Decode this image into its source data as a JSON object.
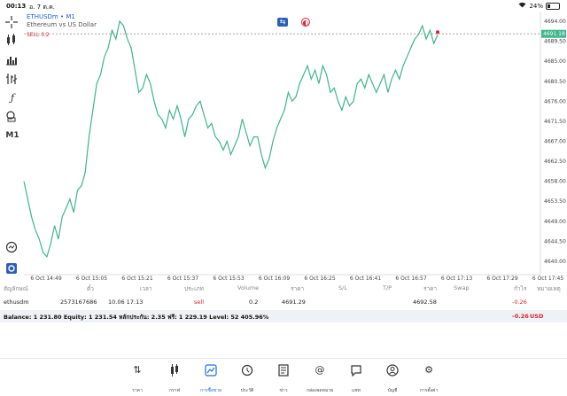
{
  "statusbar": {
    "time": "00:13",
    "date": "อ. 7 ต.ค.",
    "battery": "24%"
  },
  "chart": {
    "symbol": "ETHUSDm • M1",
    "description": "Ethereum vs US Dollar",
    "sell_label": "SELL 0.2",
    "current_price": "4691.18",
    "price_labels": [
      "4694.00",
      "4689.50",
      "4685.00",
      "4680.50",
      "4676.00",
      "4671.50",
      "4667.00",
      "4662.50",
      "4658.00",
      "4653.50",
      "4649.00",
      "4644.50",
      "4640.00"
    ],
    "time_labels": [
      "6 Oct 14:49",
      "6 Oct 15:05",
      "6 Oct 15:21",
      "6 Oct 15:37",
      "6 Oct 15:53",
      "6 Oct 16:09",
      "6 Oct 16:25",
      "6 Oct 16:41",
      "6 Oct 16:57",
      "6 Oct 17:13",
      "6 Oct 17:29",
      "6 Oct 17:45"
    ],
    "line_color": "#3fb58a",
    "sell_color": "#d23",
    "toolbar_icons": [
      "crosshair-icon",
      "candles-icon",
      "bars-icon",
      "volume-icon",
      "function-icon",
      "objects-icon",
      "timeframe-m1",
      "search-icon",
      "share-icon"
    ],
    "timeframe": "M1",
    "series": [
      4658,
      4654,
      4650,
      4647,
      4645,
      4642,
      4641,
      4644,
      4648,
      4645,
      4650,
      4652,
      4654,
      4651,
      4656,
      4657,
      4660,
      4668,
      4674,
      4680,
      4682,
      4686,
      4688,
      4692,
      4690,
      4694,
      4693,
      4690,
      4688,
      4683,
      4678,
      4679,
      4682,
      4680,
      4676,
      4673,
      4672,
      4670,
      4674,
      4672,
      4675,
      4672,
      4668,
      4672,
      4673,
      4675,
      4676,
      4673,
      4670,
      4671,
      4668,
      4667,
      4665,
      4667,
      4664,
      4666,
      4668,
      4672,
      4669,
      4666,
      4668,
      4668,
      4664,
      4661,
      4663,
      4667,
      4670,
      4672,
      4674,
      4678,
      4676,
      4677,
      4680,
      4682,
      4684,
      4681,
      4683,
      4680,
      4684,
      4682,
      4678,
      4679,
      4676,
      4674,
      4677,
      4675,
      4676,
      4680,
      4681,
      4679,
      4682,
      4680,
      4678,
      4680,
      4682,
      4678,
      4681,
      4683,
      4681,
      4684,
      4686,
      4688,
      4690,
      4691,
      4693,
      4690,
      4692,
      4689,
      4691
    ]
  },
  "table": {
    "headers": [
      "สัญลักษณ์",
      "ตั๋ว",
      "เวลา",
      "ประเภท",
      "Volume",
      "ราคา",
      "S/L",
      "T/P",
      "ราคา",
      "Swap",
      "กำไร",
      "หมายเหตุ"
    ],
    "row": {
      "symbol": "ethusdm",
      "ticket": "2573167686",
      "time": "10.06 17:13",
      "type": "sell",
      "volume": "0.2",
      "price": "4691.29",
      "current": "4692.58",
      "profit": "-0.26"
    },
    "balance_text": "Balance: 1 231.80 Equity: 1 231.54 หลักประกัน: 2.35 ฟรี: 1 229.19 Level: 52 405.96%",
    "total_profit": "-0.26",
    "currency": "USD"
  },
  "tabs": [
    {
      "label": "ราคา",
      "icon": "arrows-icon"
    },
    {
      "label": "กราฟ",
      "icon": "chart-icon"
    },
    {
      "label": "การซื้อขาย",
      "icon": "trade-icon"
    },
    {
      "label": "ประวัติ",
      "icon": "history-icon"
    },
    {
      "label": "ข่าว",
      "icon": "news-icon"
    },
    {
      "label": "กล่องจดหมาย",
      "icon": "mail-icon"
    },
    {
      "label": "แชท",
      "icon": "chat-icon"
    },
    {
      "label": "บัญชี",
      "icon": "account-icon"
    },
    {
      "label": "การตั้งค่า",
      "icon": "settings-icon"
    }
  ]
}
